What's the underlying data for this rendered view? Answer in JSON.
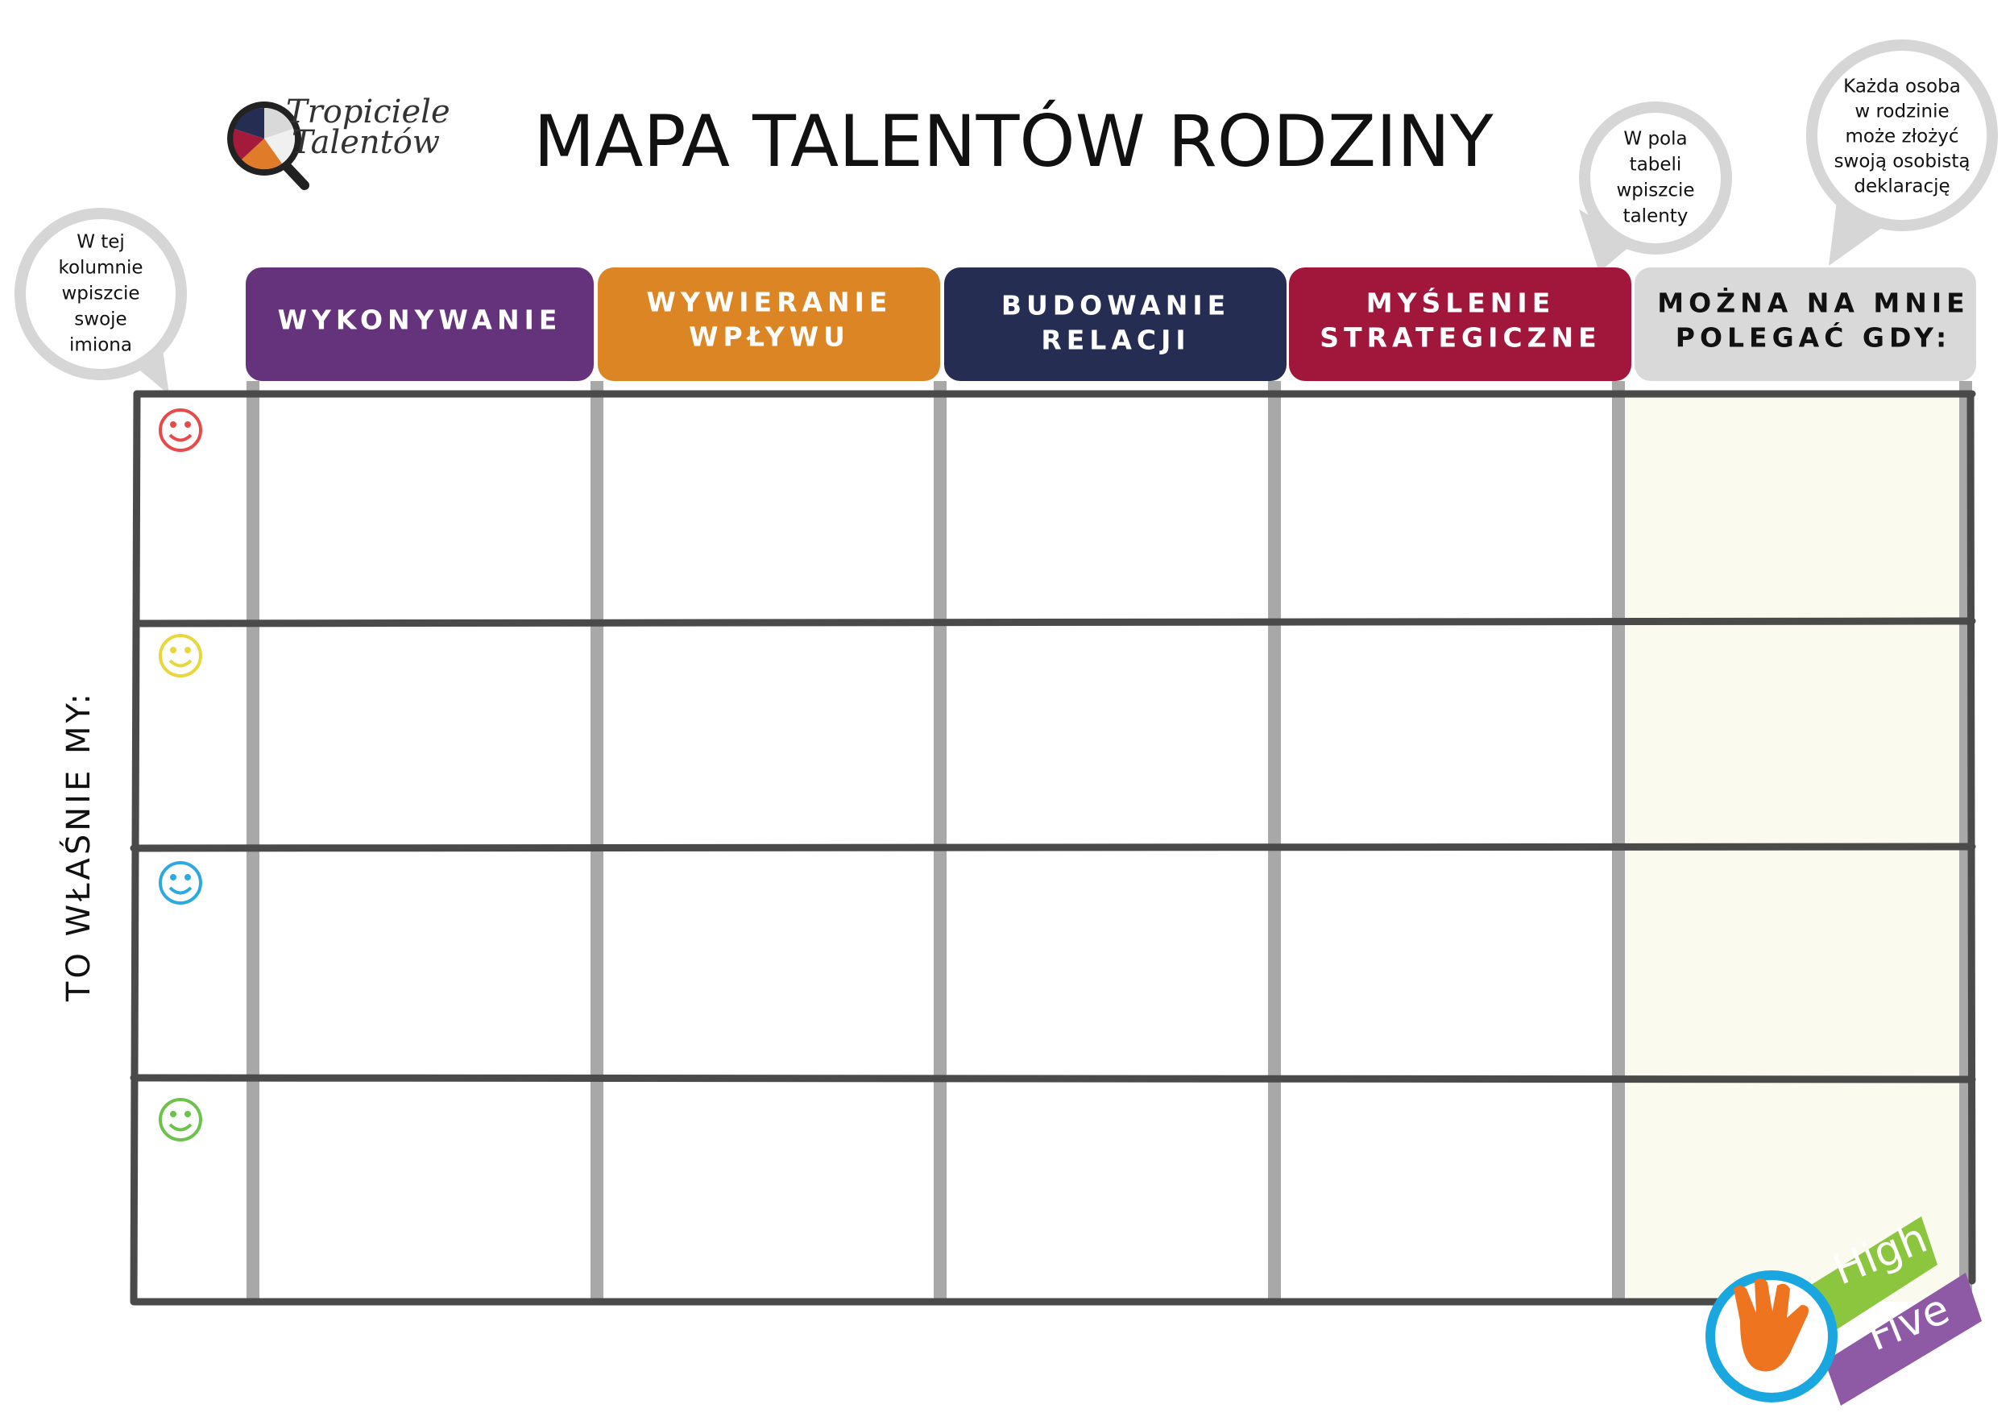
{
  "logo": {
    "lines": [
      "Tropiciele",
      "Talentów"
    ]
  },
  "header": {
    "title": "MAPA TALENTÓW RODZINY"
  },
  "bubbles": [
    {
      "lines": [
        "W tej",
        "kolumnie",
        "wpiszcie",
        "swoje",
        "imiona"
      ]
    },
    {
      "lines": [
        "W pola",
        "tabeli",
        "wpiszcie",
        "talenty"
      ]
    },
    {
      "lines": [
        "Każda osoba",
        "w rodzinie",
        "może złożyć",
        "swoją osobistą",
        "deklarację"
      ]
    }
  ],
  "columns": [
    {
      "lines": [
        "WYKONYWANIE"
      ]
    },
    {
      "lines": [
        "WYWIERANIE",
        "WPŁYWU"
      ]
    },
    {
      "lines": [
        "BUDOWANIE",
        "RELACJI"
      ]
    },
    {
      "lines": [
        "MYŚLENIE",
        "STRATEGICZNE"
      ]
    },
    {
      "lines": [
        "MOŻNA NA MNIE",
        "POLEGAĆ GDY:"
      ]
    }
  ],
  "side_label": "TO WŁAŚNIE MY:",
  "badge": {
    "lines": [
      "High",
      "Five"
    ]
  }
}
